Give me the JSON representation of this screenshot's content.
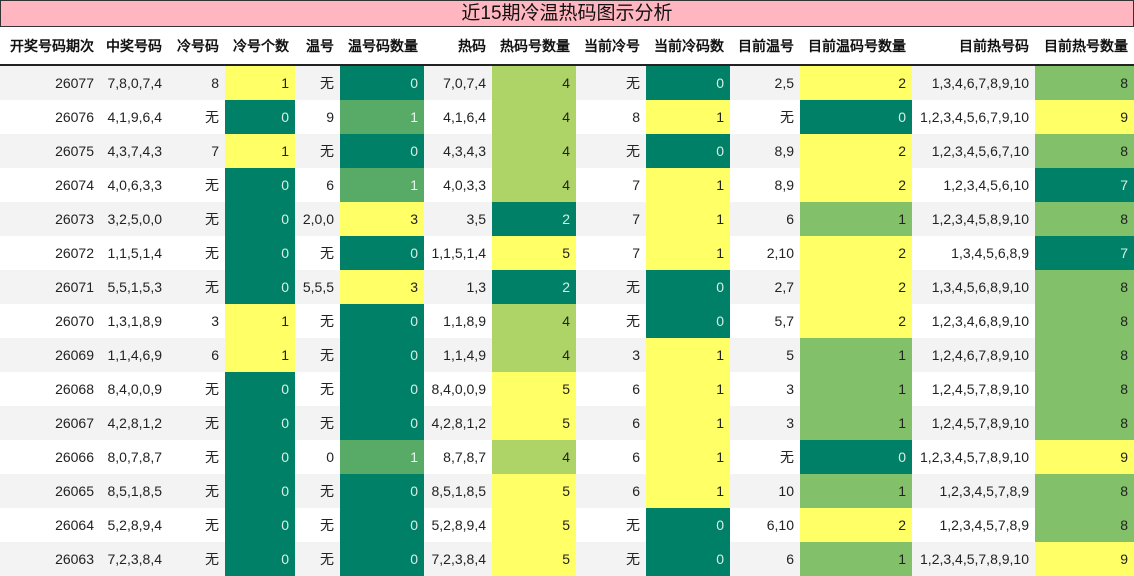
{
  "title": "近15期冷温热码图示分析",
  "columns": [
    "开奖号码期次",
    "中奖号码",
    "冷号码",
    "冷号个数",
    "温号",
    "温号码数量",
    "热码",
    "热码号数量",
    "当前冷号",
    "当前冷码数",
    "目前温号",
    "目前温码号数量",
    "目前热号码",
    "目前热号数量"
  ],
  "colors": {
    "dark_green": "#008066",
    "medium_green": "#57ab67",
    "light_green": "#aed468",
    "green": "#82c16a",
    "yellow": "#ffff66",
    "title_bg": "#ffb6c1"
  },
  "rows": [
    {
      "period": "26077",
      "winning": "7,8,0,7,4",
      "cold": "8",
      "cold_count": "1",
      "warm": "无",
      "warm_count": "0",
      "hot": "7,0,7,4",
      "hot_count": "4",
      "cur_cold": "无",
      "cur_cold_count": "0",
      "cur_warm": "2,5",
      "cur_warm_count": "2",
      "cur_hot": "1,3,4,6,7,8,9,10",
      "cur_hot_count": "8"
    },
    {
      "period": "26076",
      "winning": "4,1,9,6,4",
      "cold": "无",
      "cold_count": "0",
      "warm": "9",
      "warm_count": "1",
      "hot": "4,1,6,4",
      "hot_count": "4",
      "cur_cold": "8",
      "cur_cold_count": "1",
      "cur_warm": "无",
      "cur_warm_count": "0",
      "cur_hot": "1,2,3,4,5,6,7,9,10",
      "cur_hot_count": "9"
    },
    {
      "period": "26075",
      "winning": "4,3,7,4,3",
      "cold": "7",
      "cold_count": "1",
      "warm": "无",
      "warm_count": "0",
      "hot": "4,3,4,3",
      "hot_count": "4",
      "cur_cold": "无",
      "cur_cold_count": "0",
      "cur_warm": "8,9",
      "cur_warm_count": "2",
      "cur_hot": "1,2,3,4,5,6,7,10",
      "cur_hot_count": "8"
    },
    {
      "period": "26074",
      "winning": "4,0,6,3,3",
      "cold": "无",
      "cold_count": "0",
      "warm": "6",
      "warm_count": "1",
      "hot": "4,0,3,3",
      "hot_count": "4",
      "cur_cold": "7",
      "cur_cold_count": "1",
      "cur_warm": "8,9",
      "cur_warm_count": "2",
      "cur_hot": "1,2,3,4,5,6,10",
      "cur_hot_count": "7"
    },
    {
      "period": "26073",
      "winning": "3,2,5,0,0",
      "cold": "无",
      "cold_count": "0",
      "warm": "2,0,0",
      "warm_count": "3",
      "hot": "3,5",
      "hot_count": "2",
      "cur_cold": "7",
      "cur_cold_count": "1",
      "cur_warm": "6",
      "cur_warm_count": "1",
      "cur_hot": "1,2,3,4,5,8,9,10",
      "cur_hot_count": "8"
    },
    {
      "period": "26072",
      "winning": "1,1,5,1,4",
      "cold": "无",
      "cold_count": "0",
      "warm": "无",
      "warm_count": "0",
      "hot": "1,1,5,1,4",
      "hot_count": "5",
      "cur_cold": "7",
      "cur_cold_count": "1",
      "cur_warm": "2,10",
      "cur_warm_count": "2",
      "cur_hot": "1,3,4,5,6,8,9",
      "cur_hot_count": "7"
    },
    {
      "period": "26071",
      "winning": "5,5,1,5,3",
      "cold": "无",
      "cold_count": "0",
      "warm": "5,5,5",
      "warm_count": "3",
      "hot": "1,3",
      "hot_count": "2",
      "cur_cold": "无",
      "cur_cold_count": "0",
      "cur_warm": "2,7",
      "cur_warm_count": "2",
      "cur_hot": "1,3,4,5,6,8,9,10",
      "cur_hot_count": "8"
    },
    {
      "period": "26070",
      "winning": "1,3,1,8,9",
      "cold": "3",
      "cold_count": "1",
      "warm": "无",
      "warm_count": "0",
      "hot": "1,1,8,9",
      "hot_count": "4",
      "cur_cold": "无",
      "cur_cold_count": "0",
      "cur_warm": "5,7",
      "cur_warm_count": "2",
      "cur_hot": "1,2,3,4,6,8,9,10",
      "cur_hot_count": "8"
    },
    {
      "period": "26069",
      "winning": "1,1,4,6,9",
      "cold": "6",
      "cold_count": "1",
      "warm": "无",
      "warm_count": "0",
      "hot": "1,1,4,9",
      "hot_count": "4",
      "cur_cold": "3",
      "cur_cold_count": "1",
      "cur_warm": "5",
      "cur_warm_count": "1",
      "cur_hot": "1,2,4,6,7,8,9,10",
      "cur_hot_count": "8"
    },
    {
      "period": "26068",
      "winning": "8,4,0,0,9",
      "cold": "无",
      "cold_count": "0",
      "warm": "无",
      "warm_count": "0",
      "hot": "8,4,0,0,9",
      "hot_count": "5",
      "cur_cold": "6",
      "cur_cold_count": "1",
      "cur_warm": "3",
      "cur_warm_count": "1",
      "cur_hot": "1,2,4,5,7,8,9,10",
      "cur_hot_count": "8"
    },
    {
      "period": "26067",
      "winning": "4,2,8,1,2",
      "cold": "无",
      "cold_count": "0",
      "warm": "无",
      "warm_count": "0",
      "hot": "4,2,8,1,2",
      "hot_count": "5",
      "cur_cold": "6",
      "cur_cold_count": "1",
      "cur_warm": "3",
      "cur_warm_count": "1",
      "cur_hot": "1,2,4,5,7,8,9,10",
      "cur_hot_count": "8"
    },
    {
      "period": "26066",
      "winning": "8,0,7,8,7",
      "cold": "无",
      "cold_count": "0",
      "warm": "0",
      "warm_count": "1",
      "hot": "8,7,8,7",
      "hot_count": "4",
      "cur_cold": "6",
      "cur_cold_count": "1",
      "cur_warm": "无",
      "cur_warm_count": "0",
      "cur_hot": "1,2,3,4,5,7,8,9,10",
      "cur_hot_count": "9"
    },
    {
      "period": "26065",
      "winning": "8,5,1,8,5",
      "cold": "无",
      "cold_count": "0",
      "warm": "无",
      "warm_count": "0",
      "hot": "8,5,1,8,5",
      "hot_count": "5",
      "cur_cold": "6",
      "cur_cold_count": "1",
      "cur_warm": "10",
      "cur_warm_count": "1",
      "cur_hot": "1,2,3,4,5,7,8,9",
      "cur_hot_count": "8"
    },
    {
      "period": "26064",
      "winning": "5,2,8,9,4",
      "cold": "无",
      "cold_count": "0",
      "warm": "无",
      "warm_count": "0",
      "hot": "5,2,8,9,4",
      "hot_count": "5",
      "cur_cold": "无",
      "cur_cold_count": "0",
      "cur_warm": "6,10",
      "cur_warm_count": "2",
      "cur_hot": "1,2,3,4,5,7,8,9",
      "cur_hot_count": "8"
    },
    {
      "period": "26063",
      "winning": "7,2,3,8,4",
      "cold": "无",
      "cold_count": "0",
      "warm": "无",
      "warm_count": "0",
      "hot": "7,2,3,8,4",
      "hot_count": "5",
      "cur_cold": "无",
      "cur_cold_count": "0",
      "cur_warm": "6",
      "cur_warm_count": "1",
      "cur_hot": "1,2,3,4,5,7,8,9,10",
      "cur_hot_count": "9"
    }
  ]
}
